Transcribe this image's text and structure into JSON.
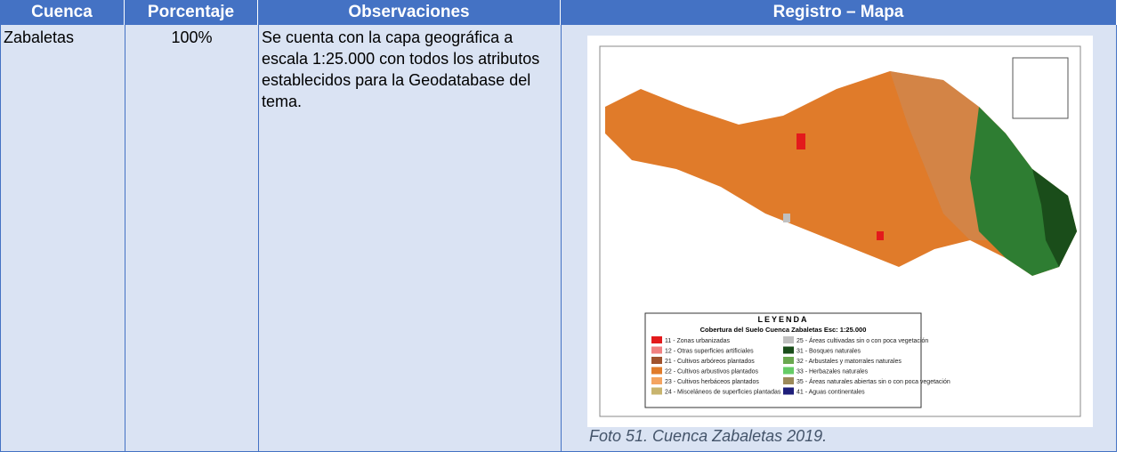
{
  "table": {
    "header": [
      "Cuenca",
      "Porcentaje",
      "Observaciones",
      "Registro – Mapa"
    ],
    "rows": [
      [
        "Zabaletas",
        "100%",
        "Se cuenta con la capa geográfica a escala 1:25.000 con todos los atributos establecidos para la Geodatabase del tema."
      ]
    ]
  },
  "map": {
    "legend_title": "LEYENDA",
    "legend_subtitle": "Cobertura del Suelo Cuenca Zabaletas Esc: 1:25.000",
    "legend_items": [
      {
        "label": "11 - Zonas urbanizadas",
        "color": "#e31a1c"
      },
      {
        "label": "12 - Otras superficies artificiales",
        "color": "#f08080"
      },
      {
        "label": "21 - Cultivos arbóreos plantados",
        "color": "#a0522d"
      },
      {
        "label": "22 - Cultivos arbustivos plantados",
        "color": "#e07b2a"
      },
      {
        "label": "23 - Cultivos herbáceos plantados",
        "color": "#f4a460"
      },
      {
        "label": "24 - Misceláneos de superficies plantadas",
        "color": "#c8b46e"
      },
      {
        "label": "25 - Áreas cultivadas sin o con poca vegetación",
        "color": "#c0c0c0"
      },
      {
        "label": "31 - Bosques naturales",
        "color": "#1a4d1a"
      },
      {
        "label": "32 - Arbustales y matorrales naturales",
        "color": "#6aa84f"
      },
      {
        "label": "33 - Herbazales naturales",
        "color": "#66cc66"
      },
      {
        "label": "35 - Áreas naturales abiertas sin o con poca vegetación",
        "color": "#9c8a5a"
      },
      {
        "label": "41 - Aguas continentales",
        "color": "#1f1f7a"
      }
    ]
  },
  "caption": "Foto 51. Cuenca Zabaletas 2019."
}
